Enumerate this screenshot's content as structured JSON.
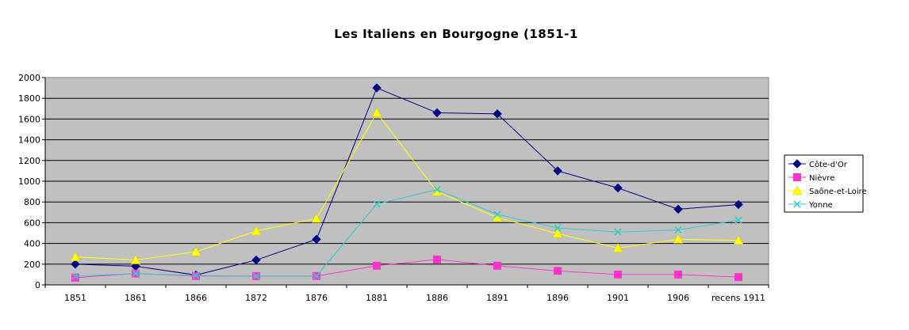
{
  "chart_data": {
    "type": "line",
    "title": "Les    Italiens   en   Bourgogne   (1851-1",
    "xlabel": "",
    "ylabel": "",
    "categories": [
      "1851",
      "1861",
      "1866",
      "1872",
      "1876",
      "1881",
      "1886",
      "1891",
      "1896",
      "1901",
      "1906",
      "recens 1911"
    ],
    "ylim": [
      0,
      2000
    ],
    "yticks": [
      "0",
      "200",
      "400",
      "600",
      "800",
      "1000",
      "1200",
      "1400",
      "1600",
      "1800",
      "2000"
    ],
    "grid": true,
    "legend_position": "right",
    "series": [
      {
        "name": "Côte-d'Or",
        "color": "#000080",
        "marker": "diamond",
        "values": [
          200,
          180,
          95,
          240,
          440,
          1900,
          1660,
          1650,
          1100,
          935,
          730,
          775
        ]
      },
      {
        "name": "Nièvre",
        "color": "#ff33cc",
        "marker": "square",
        "values": [
          70,
          110,
          85,
          85,
          85,
          185,
          245,
          185,
          135,
          100,
          100,
          75
        ]
      },
      {
        "name": "Saône-et-Loire",
        "color": "#ffff00",
        "marker": "triangle",
        "values": [
          270,
          240,
          320,
          520,
          640,
          1660,
          900,
          650,
          495,
          355,
          440,
          430
        ]
      },
      {
        "name": "Yonne",
        "color": "#33cccc",
        "marker": "x",
        "values": [
          85,
          110,
          90,
          85,
          85,
          780,
          920,
          680,
          550,
          510,
          530,
          625
        ]
      }
    ]
  }
}
